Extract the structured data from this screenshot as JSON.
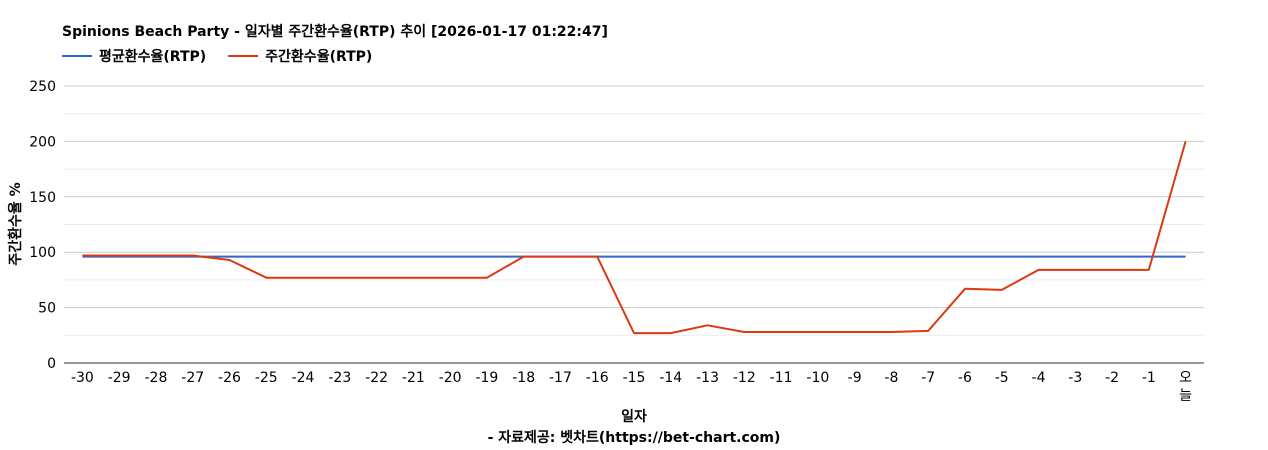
{
  "chart_data": {
    "type": "line",
    "title": "Spinions Beach Party - 일자별 주간환수율(RTP) 추이 [2026-01-17 01:22:47]",
    "xlabel": "일자",
    "ylabel": "주간환수율 %",
    "source": "- 자료제공: 벳차트(https://bet-chart.com)",
    "categories": [
      "-30",
      "-29",
      "-28",
      "-27",
      "-26",
      "-25",
      "-24",
      "-23",
      "-22",
      "-21",
      "-20",
      "-19",
      "-18",
      "-17",
      "-16",
      "-15",
      "-14",
      "-13",
      "-12",
      "-11",
      "-10",
      "-9",
      "-8",
      "-7",
      "-6",
      "-5",
      "-4",
      "-3",
      "-2",
      "-1",
      "오늘"
    ],
    "ylim": [
      0,
      250
    ],
    "yticks": [
      0,
      50,
      100,
      150,
      200,
      250
    ],
    "grid": true,
    "legend_position": "top-left",
    "series": [
      {
        "name": "평균환수율(RTP)",
        "color": "#3366cc",
        "values": [
          96,
          96,
          96,
          96,
          96,
          96,
          96,
          96,
          96,
          96,
          96,
          96,
          96,
          96,
          96,
          96,
          96,
          96,
          96,
          96,
          96,
          96,
          96,
          96,
          96,
          96,
          96,
          96,
          96,
          96,
          96
        ]
      },
      {
        "name": "주간환수율(RTP)",
        "color": "#dc3912",
        "values": [
          97,
          97,
          97,
          97,
          93,
          77,
          77,
          77,
          77,
          77,
          77,
          77,
          96,
          96,
          96,
          27,
          27,
          34,
          28,
          28,
          28,
          28,
          28,
          29,
          67,
          66,
          84,
          84,
          84,
          84,
          200
        ]
      }
    ]
  }
}
